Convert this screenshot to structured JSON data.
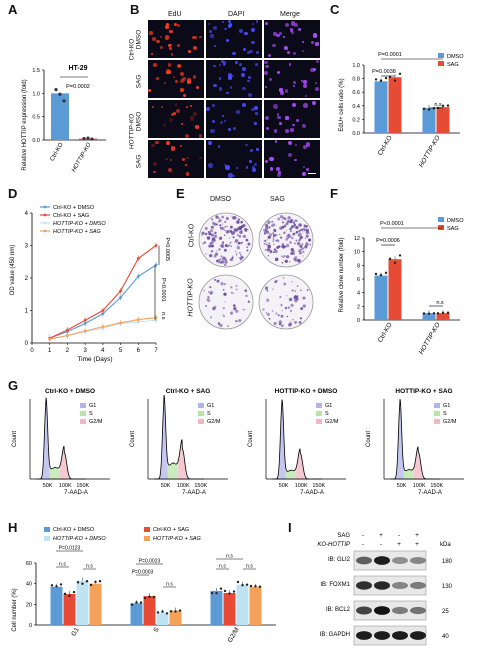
{
  "panel_labels": [
    "A",
    "B",
    "C",
    "D",
    "E",
    "F",
    "G",
    "H",
    "I"
  ],
  "colors": {
    "dmso": "#5b9bd5",
    "sag": "#e64b35",
    "ko_dmso": "#bfe3f2",
    "ko_sag": "#f4a259",
    "edu": "#ff3b1f",
    "dapi": "#4a4cff",
    "merge": "#b04cff",
    "purple": "#6c4fa0"
  },
  "A": {
    "title": "HT-29",
    "ylabel": "Relative HOTTIP expression (fold)",
    "pvalue": "P=0.0002",
    "chart_data": {
      "type": "bar",
      "categories": [
        "Ctrl-KO",
        "HOTTIP-KO"
      ],
      "values": [
        1.0,
        0.03
      ],
      "points": [
        [
          1.08,
          0.98,
          0.84
        ],
        [
          0.03,
          0.04,
          0.02
        ]
      ],
      "ylim": [
        0,
        1.5
      ],
      "yticks": [
        "0.0",
        "0.5",
        "1.0",
        "1.5"
      ]
    }
  },
  "B": {
    "columns": [
      "EdU",
      "DAPI",
      "Merge"
    ],
    "groups": [
      "Ctrl-KO",
      "HOTTIP-KO"
    ],
    "rows": [
      "DMSO",
      "SAG",
      "DMSO",
      "SAG"
    ]
  },
  "C": {
    "ylabel": "EdU+ cells ratio (%)",
    "legend": [
      "DMSO",
      "SAG"
    ],
    "p1": "P=0.0001",
    "p2": "P=0.0038",
    "p3": "n.s",
    "chart_data": {
      "type": "bar",
      "categories": [
        "Ctrl-KO",
        "HOTTIP-KO"
      ],
      "series": [
        {
          "name": "DMSO",
          "values": [
            0.76,
            0.37
          ]
        },
        {
          "name": "SAG",
          "values": [
            0.82,
            0.38
          ]
        }
      ],
      "ylim": [
        0,
        1.0
      ],
      "yticks": [
        "0.0",
        "0.2",
        "0.4",
        "0.6",
        "0.8",
        "1.0"
      ]
    }
  },
  "D": {
    "ylabel": "OD value (450 nm)",
    "xlabel": "Time (Days)",
    "legend": [
      "Ctrl-KO + DMSO",
      "Ctrl-KO + SAG",
      "HOTTIP-KO + DMSO",
      "HOTTIP-KO + SAG"
    ],
    "pvals": [
      "P=0.0005",
      "P<0.0001",
      "n.s"
    ],
    "chart_data": {
      "type": "line",
      "x": [
        1,
        2,
        3,
        4,
        5,
        6,
        7
      ],
      "xlim": [
        0,
        7
      ],
      "ylim": [
        0,
        4
      ],
      "yticks": [
        "0",
        "1",
        "2",
        "3",
        "4"
      ],
      "xticks": [
        "0",
        "1",
        "2",
        "3",
        "4",
        "5",
        "6",
        "7"
      ],
      "series": [
        {
          "name": "Ctrl-KO + DMSO",
          "values": [
            0.15,
            0.35,
            0.6,
            0.9,
            1.4,
            2.05,
            2.4
          ]
        },
        {
          "name": "Ctrl-KO + SAG",
          "values": [
            0.15,
            0.4,
            0.7,
            1.0,
            1.6,
            2.6,
            3.0
          ]
        },
        {
          "name": "HOTTIP-KO + DMSO",
          "values": [
            0.12,
            0.22,
            0.35,
            0.45,
            0.6,
            0.65,
            0.7
          ]
        },
        {
          "name": "HOTTIP-KO + SAG",
          "values": [
            0.12,
            0.23,
            0.37,
            0.5,
            0.62,
            0.72,
            0.78
          ]
        }
      ]
    }
  },
  "E": {
    "columns": [
      "DMSO",
      "SAG"
    ],
    "rows": [
      "Ctrl-KO",
      "HOTTIP-KO"
    ]
  },
  "F": {
    "ylabel": "Relative clone number (fold)",
    "legend": [
      "DMSO",
      "SAG"
    ],
    "p1": "P<0.0001",
    "p2": "P=0.0006",
    "p3": "n.s",
    "chart_data": {
      "type": "bar",
      "categories": [
        "Ctrl-KO",
        "HOTTIP-KO"
      ],
      "series": [
        {
          "name": "DMSO",
          "values": [
            6.5,
            1.0
          ]
        },
        {
          "name": "SAG",
          "values": [
            8.9,
            1.0
          ]
        }
      ],
      "ylim": [
        0,
        12
      ],
      "yticks": [
        "0",
        "2",
        "4",
        "6",
        "8",
        "10",
        "12"
      ]
    }
  },
  "G": {
    "titles": [
      "Ctrl-KO + DMSO",
      "Ctrl-KO + SAG",
      "HOTTIP-KO + DMSO",
      "HOTTIP-KO + SAG"
    ],
    "ylabel": "Count",
    "xlabel": "7-AAD-A",
    "xticks": [
      "50K",
      "100K",
      "150K"
    ],
    "legend": [
      "G1",
      "S",
      "G2/M"
    ]
  },
  "H": {
    "ylabel": "Cell number (%)",
    "legend": [
      "Ctrl-KO + DMSO",
      "Ctrl-KO + SAG",
      "HOTTIP-KO + DMSO",
      "HOTTIP-KO + SAG"
    ],
    "pvals": [
      "P=0.0123",
      "P=0.0023",
      "P=0.0003",
      "n.s"
    ],
    "chart_data": {
      "type": "bar",
      "categories": [
        "G1",
        "S",
        "G2/M"
      ],
      "ylim": [
        0,
        60
      ],
      "yticks": [
        "0",
        "20",
        "40",
        "60"
      ],
      "series": [
        {
          "name": "Ctrl-KO + DMSO",
          "values": [
            37,
            21,
            33
          ]
        },
        {
          "name": "Ctrl-KO + SAG",
          "values": [
            30,
            28,
            31
          ]
        },
        {
          "name": "HOTTIP-KO + DMSO",
          "values": [
            43,
            12,
            39
          ]
        },
        {
          "name": "HOTTIP-KO + SAG",
          "values": [
            40,
            14,
            37
          ]
        }
      ]
    }
  },
  "I": {
    "conditions": [
      {
        "label": "SAG",
        "marks": [
          "-",
          "+",
          "-",
          "+"
        ]
      },
      {
        "label": "KO-HOTTIP",
        "marks": [
          "-",
          "-",
          "+",
          "+"
        ]
      }
    ],
    "kda": "kDa",
    "blots": [
      {
        "label": "IB: GLI2",
        "kda": "180"
      },
      {
        "label": "IB: FOXM1",
        "kda": "130"
      },
      {
        "label": "IB: BCL2",
        "kda": "25"
      },
      {
        "label": "IB: GAPDH",
        "kda": "40"
      }
    ]
  }
}
